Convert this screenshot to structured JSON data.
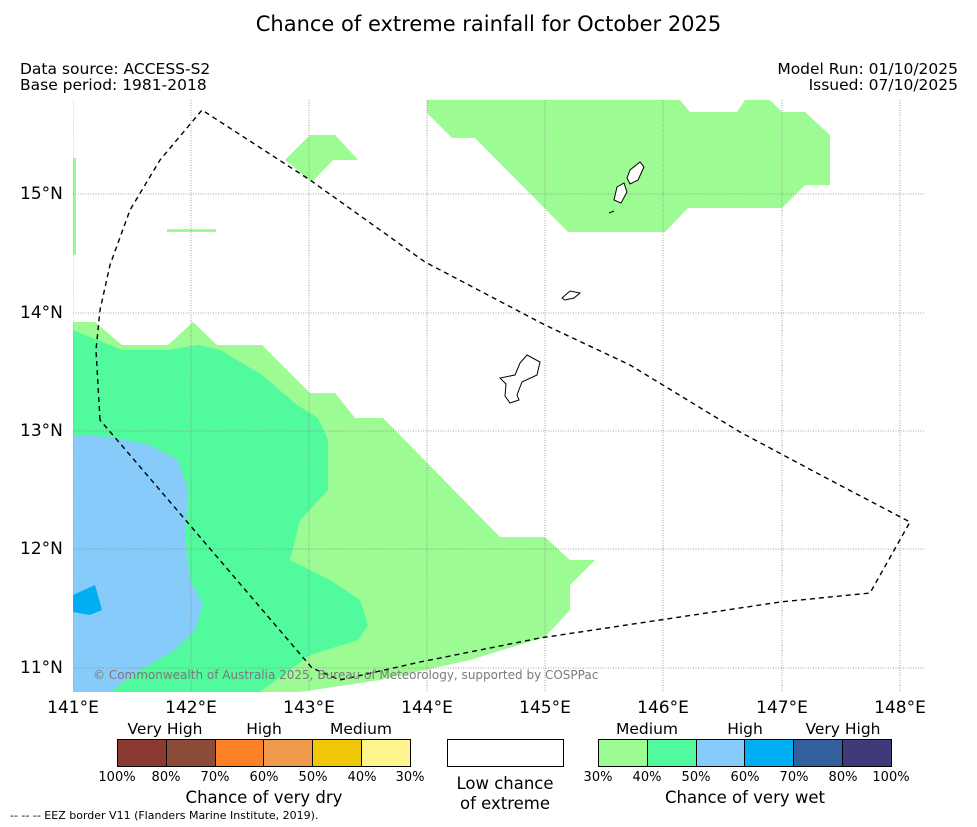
{
  "title": "Chance of extreme rainfall for October 2025",
  "data_source": "Data source: ACCESS-S2",
  "base_period": "Base period: 1981-2018",
  "model_run": "Model Run: 01/10/2025",
  "issued": "Issued: 07/10/2025",
  "copyright": "© Commonwealth of Australia 2025, Bureau of Meteorology, supported by COSPPac",
  "lat_labels": [
    "15°N",
    "14°N",
    "13°N",
    "12°N",
    "11°N"
  ],
  "lon_labels": [
    "141°E",
    "142°E",
    "143°E",
    "144°E",
    "145°E",
    "146°E",
    "147°E",
    "148°E"
  ],
  "legend": {
    "dry": {
      "headers": [
        "Very High",
        "High",
        "Medium"
      ],
      "ticks": [
        "100%",
        "80%",
        "70%",
        "60%",
        "50%",
        "40%",
        "30%"
      ],
      "colors": [
        "#8b3a32",
        "#8c4a38",
        "#fc8025",
        "#ee9a4a",
        "#f0c80a",
        "#fff58e"
      ],
      "title": "Chance of very dry"
    },
    "low": {
      "line1": "Low chance",
      "line2": "of extreme"
    },
    "wet": {
      "headers": [
        "Medium",
        "High",
        "Very High"
      ],
      "ticks": [
        "30%",
        "40%",
        "50%",
        "60%",
        "70%",
        "80%",
        "100%"
      ],
      "colors": [
        "#9cfb93",
        "#50fa9d",
        "#86cbfa",
        "#00aff2",
        "#335f9c",
        "#403a7a"
      ],
      "title": "Chance of very wet"
    }
  },
  "eez_note": "--  --  -- EEZ border V11 (Flanders Marine Institute, 2019)."
}
